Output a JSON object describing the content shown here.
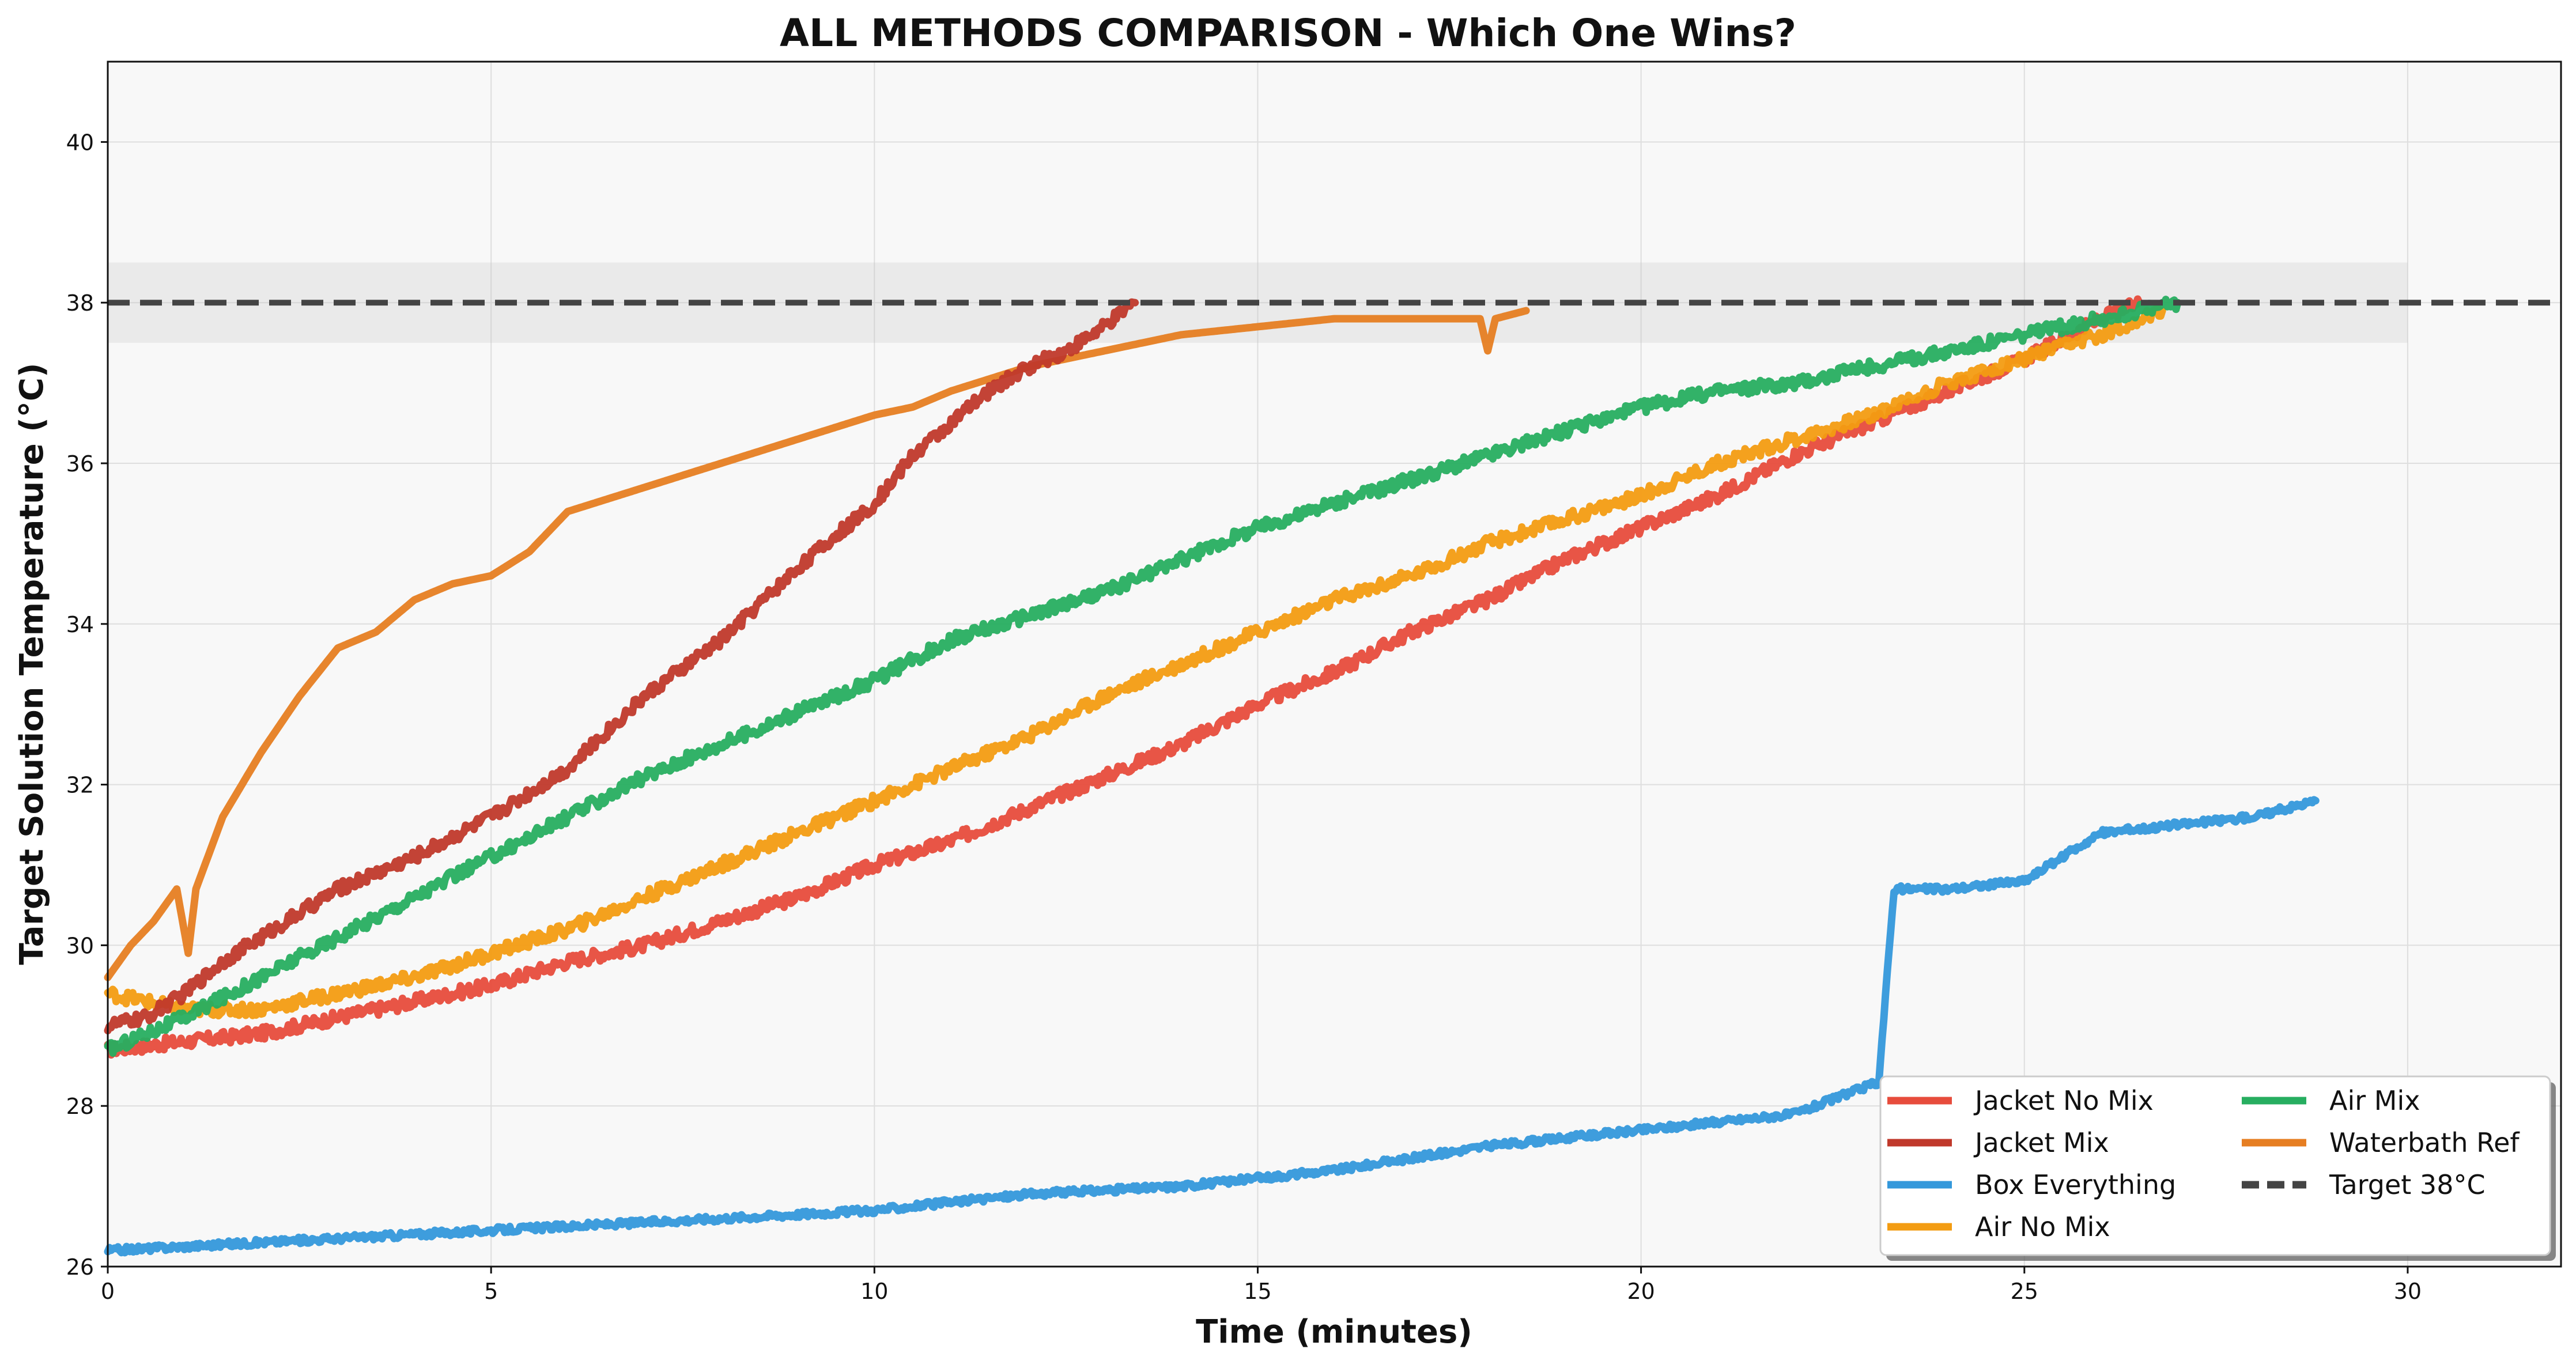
{
  "chart_data": {
    "type": "line",
    "title": "ALL METHODS COMPARISON - Which One Wins?",
    "xlabel": "Time (minutes)",
    "ylabel": "Target Solution Temperature (°C)",
    "xlim": [
      0,
      32
    ],
    "ylim": [
      26,
      41
    ],
    "xticks": [
      "0",
      "5",
      "10",
      "15",
      "20",
      "25",
      "30"
    ],
    "yticks": [
      "26",
      "28",
      "30",
      "32",
      "34",
      "36",
      "38",
      "40"
    ],
    "grid": true,
    "target_band": [
      37.5,
      38.5
    ],
    "target_band_x": [
      0,
      30
    ],
    "legend_position": "lower-right",
    "legend_columns": 2,
    "series": [
      {
        "name": "Jacket No Mix",
        "color": "#e74c3c",
        "x": [
          0,
          1,
          2,
          3,
          4,
          5,
          6,
          7,
          8,
          9,
          10,
          11,
          12,
          13,
          14,
          15,
          16,
          17,
          18,
          19,
          20,
          21,
          22,
          23,
          24,
          25,
          26,
          26.5
        ],
        "y": [
          28.7,
          28.8,
          28.9,
          29.1,
          29.3,
          29.5,
          29.8,
          30.0,
          30.3,
          30.6,
          31.0,
          31.3,
          31.7,
          32.1,
          32.5,
          33.0,
          33.4,
          33.9,
          34.3,
          34.8,
          35.2,
          35.6,
          36.1,
          36.5,
          36.9,
          37.3,
          37.8,
          38.0
        ]
      },
      {
        "name": "Jacket Mix",
        "color": "#c0392b",
        "x": [
          0,
          0.5,
          1,
          1.5,
          2,
          3,
          4,
          5,
          6,
          7,
          8,
          9,
          10,
          10.5,
          11,
          11.5,
          12,
          12.5,
          13,
          13.4
        ],
        "y": [
          29.0,
          29.1,
          29.4,
          29.8,
          30.1,
          30.7,
          31.1,
          31.6,
          32.2,
          33.1,
          33.8,
          34.7,
          35.5,
          36.1,
          36.5,
          36.9,
          37.2,
          37.4,
          37.7,
          38.0
        ]
      },
      {
        "name": "Box Everything",
        "color": "#3498db",
        "x": [
          0,
          2,
          4,
          6,
          8,
          10,
          12,
          14,
          16,
          18,
          20,
          22,
          23.1,
          23.3,
          24,
          25,
          26,
          27,
          28,
          28.8
        ],
        "y": [
          26.2,
          26.3,
          26.4,
          26.5,
          26.6,
          26.7,
          26.9,
          27.0,
          27.2,
          27.5,
          27.7,
          27.9,
          28.3,
          30.7,
          30.7,
          30.8,
          31.4,
          31.5,
          31.6,
          31.8
        ]
      },
      {
        "name": "Air No Mix",
        "color": "#f39c12",
        "x": [
          0,
          0.5,
          1,
          2,
          3,
          4,
          5,
          6,
          7,
          8,
          9,
          10,
          11,
          12,
          13,
          14,
          15,
          16,
          17,
          18,
          19,
          20,
          21,
          22,
          23,
          24,
          25,
          26,
          26.8
        ],
        "y": [
          29.4,
          29.3,
          29.2,
          29.2,
          29.4,
          29.6,
          29.9,
          30.2,
          30.6,
          31.0,
          31.4,
          31.8,
          32.2,
          32.6,
          33.1,
          33.5,
          33.9,
          34.3,
          34.6,
          35.0,
          35.3,
          35.6,
          36.0,
          36.3,
          36.6,
          37.0,
          37.3,
          37.6,
          37.9
        ]
      },
      {
        "name": "Air Mix",
        "color": "#27ae60",
        "x": [
          0,
          1,
          2,
          3,
          4,
          5,
          6,
          7,
          8,
          9,
          10,
          11,
          12,
          13,
          14,
          15,
          16,
          17,
          18,
          19,
          20,
          21,
          22,
          23,
          24,
          25,
          26,
          27
        ],
        "y": [
          28.7,
          29.1,
          29.6,
          30.1,
          30.6,
          31.1,
          31.6,
          32.1,
          32.5,
          32.9,
          33.3,
          33.8,
          34.1,
          34.4,
          34.8,
          35.2,
          35.5,
          35.8,
          36.1,
          36.4,
          36.7,
          36.9,
          37.0,
          37.2,
          37.4,
          37.6,
          37.8,
          38.0
        ]
      },
      {
        "name": "Waterbath Ref",
        "color": "#e67e22",
        "x": [
          0,
          0.3,
          0.6,
          0.9,
          1.05,
          1.15,
          1.5,
          2,
          2.5,
          3,
          3.5,
          4,
          4.5,
          5,
          5.5,
          6,
          7,
          8,
          9,
          10,
          10.5,
          11,
          12,
          13,
          14,
          15,
          16,
          17,
          17.9,
          18.0,
          18.1,
          18.5
        ],
        "y": [
          29.6,
          30.0,
          30.3,
          30.7,
          29.9,
          30.7,
          31.6,
          32.4,
          33.1,
          33.7,
          33.9,
          34.3,
          34.5,
          34.6,
          34.9,
          35.4,
          35.7,
          36.0,
          36.3,
          36.6,
          36.7,
          36.9,
          37.2,
          37.4,
          37.6,
          37.7,
          37.8,
          37.8,
          37.8,
          37.4,
          37.8,
          37.9
        ]
      }
    ],
    "reference_lines": [
      {
        "name": "Target 38°C",
        "y": 38,
        "color": "#444444",
        "style": "dashed"
      }
    ]
  }
}
